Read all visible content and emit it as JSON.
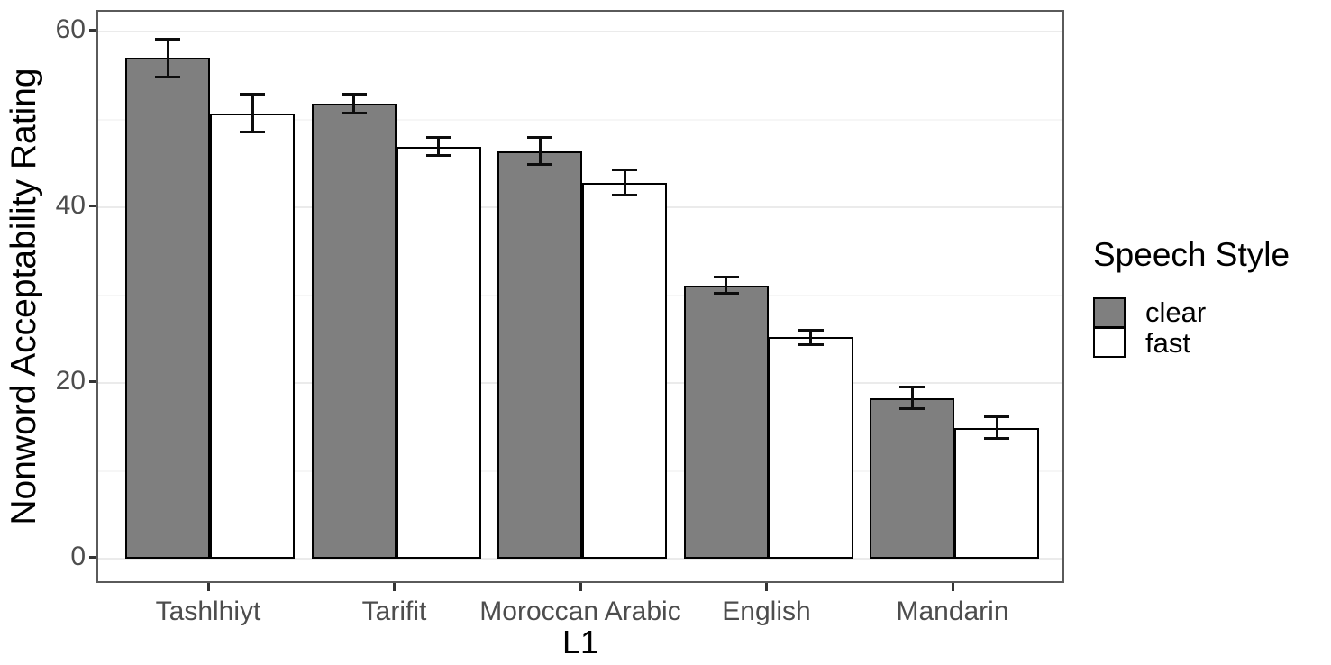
{
  "chart_data": {
    "type": "bar",
    "title": "",
    "xlabel": "L1",
    "ylabel": "Nonword Acceptability Rating",
    "legend_title": "Speech Style",
    "legend_position": "right",
    "categories": [
      "Tashlhiyt",
      "Tarifit",
      "Moroccan Arabic",
      "English",
      "Mandarin"
    ],
    "series": [
      {
        "name": "clear",
        "fill": "#7f7f7f",
        "values": [
          57.0,
          51.8,
          46.4,
          31.1,
          18.3
        ],
        "errors": [
          2.3,
          1.2,
          1.7,
          1.1,
          1.4
        ]
      },
      {
        "name": "fast",
        "fill": "#ffffff",
        "values": [
          50.7,
          46.9,
          42.8,
          25.2,
          14.9
        ],
        "errors": [
          2.3,
          1.2,
          1.6,
          1.0,
          1.4
        ]
      }
    ],
    "yticks_major": [
      0,
      20,
      40,
      60
    ],
    "yticks_minor": [
      10,
      30,
      50
    ],
    "ylim": [
      0,
      62
    ],
    "grid": true,
    "bar_outline": "#000000",
    "error_bar_color": "#000000",
    "gridline_major_color": "#ebebeb",
    "gridline_minor_color": "#f6f6f6",
    "panel_border_color": "#5a5a5a",
    "tick_label_color": "#4d4d4d"
  }
}
